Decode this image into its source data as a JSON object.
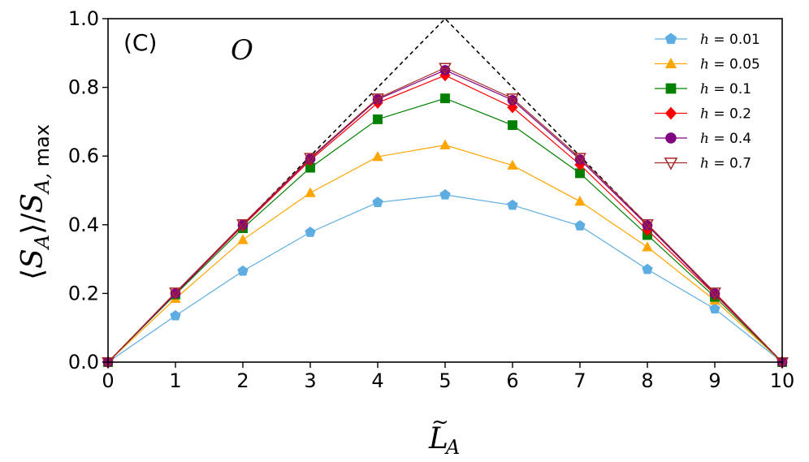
{
  "panel_label": "(C)",
  "panel_symbol": "O",
  "chart_data": {
    "type": "line",
    "x": [
      0,
      1,
      2,
      3,
      4,
      5,
      6,
      7,
      8,
      9,
      10
    ],
    "xlabel": "L̃_A",
    "ylabel": "⟨S_A⟩/S_A,max",
    "xlim": [
      0,
      10
    ],
    "ylim": [
      0.0,
      1.0
    ],
    "xticks": [
      "0",
      "1",
      "2",
      "3",
      "4",
      "5",
      "6",
      "7",
      "8",
      "9",
      "10"
    ],
    "yticks": [
      "0.0",
      "0.2",
      "0.4",
      "0.6",
      "0.8",
      "1.0"
    ],
    "grid": false,
    "legend_position": "top-right",
    "reference_line": {
      "style": "dashed",
      "color": "#000000",
      "values": [
        0,
        0.2,
        0.4,
        0.6,
        0.8,
        1.0,
        0.8,
        0.6,
        0.4,
        0.2,
        0
      ]
    },
    "series": [
      {
        "name": "h = 0.01",
        "h_value": "0.01",
        "color": "#5dade2",
        "marker": "pentagon",
        "values": [
          0,
          0.135,
          0.265,
          0.378,
          0.465,
          0.487,
          0.457,
          0.397,
          0.27,
          0.155,
          0
        ]
      },
      {
        "name": "h = 0.05",
        "h_value": "0.05",
        "color": "#ffa500",
        "marker": "triangle-up",
        "values": [
          0,
          0.185,
          0.356,
          0.493,
          0.598,
          0.632,
          0.573,
          0.468,
          0.335,
          0.18,
          0
        ]
      },
      {
        "name": "h = 0.1",
        "h_value": "0.1",
        "color": "#008000",
        "marker": "square",
        "values": [
          0,
          0.197,
          0.39,
          0.566,
          0.707,
          0.768,
          0.69,
          0.55,
          0.37,
          0.19,
          0
        ]
      },
      {
        "name": "h = 0.2",
        "h_value": "0.2",
        "color": "#ff0000",
        "marker": "diamond",
        "values": [
          0,
          0.2,
          0.397,
          0.588,
          0.755,
          0.835,
          0.742,
          0.575,
          0.385,
          0.197,
          0
        ]
      },
      {
        "name": "h = 0.4",
        "h_value": "0.4",
        "color": "#800080",
        "marker": "circle",
        "values": [
          0,
          0.2,
          0.4,
          0.592,
          0.765,
          0.85,
          0.763,
          0.59,
          0.398,
          0.2,
          0
        ]
      },
      {
        "name": "h = 0.7",
        "h_value": "0.7",
        "color": "#a52a2a",
        "marker": "triangle-down-open",
        "values": [
          0,
          0.203,
          0.402,
          0.595,
          0.768,
          0.857,
          0.768,
          0.595,
          0.402,
          0.203,
          0
        ]
      }
    ]
  }
}
